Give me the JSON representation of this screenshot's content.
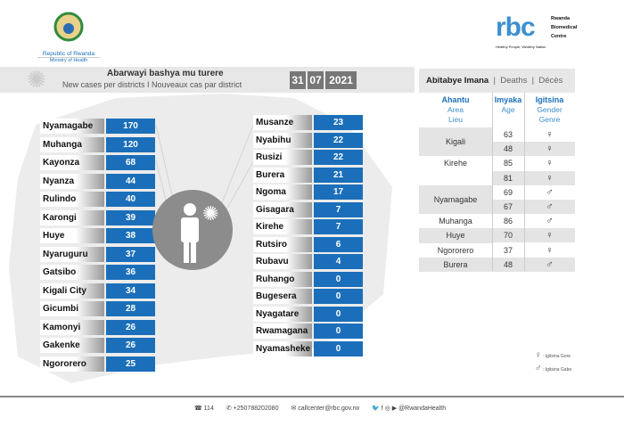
{
  "header": {
    "left_logo_line1": "Republic of Rwanda",
    "left_logo_line2": "Ministry of Health",
    "rbc_logo": "rbc",
    "rbc_name": [
      "Rwanda",
      "Biomedical",
      "Centre"
    ],
    "rbc_tagline": "Healthy People, Wealthy Nation"
  },
  "cases": {
    "title": "Abarwayi bashya mu turere",
    "subtitle": "New cases per districts  I  Nouveaux cas par district",
    "date": {
      "day": "31",
      "month": "07",
      "year": "2021"
    },
    "left": [
      {
        "d": "Nyamagabe",
        "v": "170"
      },
      {
        "d": "Muhanga",
        "v": "120"
      },
      {
        "d": "Kayonza",
        "v": "68"
      },
      {
        "d": "Nyanza",
        "v": "44"
      },
      {
        "d": "Rulindo",
        "v": "40"
      },
      {
        "d": "Karongi",
        "v": "39"
      },
      {
        "d": "Huye",
        "v": "38"
      },
      {
        "d": "Nyaruguru",
        "v": "37"
      },
      {
        "d": "Gatsibo",
        "v": "36"
      },
      {
        "d": "Kigali City",
        "v": "34"
      },
      {
        "d": "Gicumbi",
        "v": "28"
      },
      {
        "d": "Kamonyi",
        "v": "26"
      },
      {
        "d": "Gakenke",
        "v": "26"
      },
      {
        "d": "Ngororero",
        "v": "25"
      }
    ],
    "right": [
      {
        "d": "Musanze",
        "v": "23"
      },
      {
        "d": "Nyabihu",
        "v": "22"
      },
      {
        "d": "Rusizi",
        "v": "22"
      },
      {
        "d": "Burera",
        "v": "21"
      },
      {
        "d": "Ngoma",
        "v": "17"
      },
      {
        "d": "Gisagara",
        "v": "7"
      },
      {
        "d": "Kirehe",
        "v": "7"
      },
      {
        "d": "Rutsiro",
        "v": "6"
      },
      {
        "d": "Rubavu",
        "v": "4"
      },
      {
        "d": "Ruhango",
        "v": "0"
      },
      {
        "d": "Bugesera",
        "v": "0"
      },
      {
        "d": "Nyagatare",
        "v": "0"
      },
      {
        "d": "Rwamagana",
        "v": "0"
      },
      {
        "d": "Nyamasheke",
        "v": "0"
      }
    ]
  },
  "deaths": {
    "title": "Abitabye Imana",
    "title_en": "Deaths",
    "title_fr": "Décès",
    "col_area": [
      "Ahantu",
      "Area",
      "Lieu"
    ],
    "col_age": [
      "Imyaka",
      "Age"
    ],
    "col_gender": [
      "Igitsina",
      "Gender",
      "Genre"
    ],
    "areas": [
      {
        "name": "Kigali",
        "rows": 2
      },
      {
        "name": "Kirehe",
        "rows": 2
      },
      {
        "name": "Nyamagabe",
        "rows": 2
      },
      {
        "name": "Muhanga",
        "rows": 1
      },
      {
        "name": "Huye",
        "rows": 1
      },
      {
        "name": "Ngororero",
        "rows": 1
      },
      {
        "name": "Burera",
        "rows": 1
      }
    ],
    "rows": [
      {
        "age": "63",
        "g": "♀"
      },
      {
        "age": "48",
        "g": "♀"
      },
      {
        "age": "85",
        "g": "♀"
      },
      {
        "age": "81",
        "g": "♀"
      },
      {
        "age": "69",
        "g": "♂"
      },
      {
        "age": "67",
        "g": "♂"
      },
      {
        "age": "86",
        "g": "♂"
      },
      {
        "age": "70",
        "g": "♀"
      },
      {
        "age": "37",
        "g": "♀"
      },
      {
        "age": "48",
        "g": "♂"
      }
    ],
    "legend": [
      {
        "sym": "♀",
        "label": ": Igitsina Gore"
      },
      {
        "sym": "♂",
        "label": ": Igitsina Gabo"
      }
    ]
  },
  "footer": {
    "phone": "114",
    "whatsapp": "+250788202080",
    "email": "callcenter@rbc.gov.rw",
    "social": "@RwandaHealth"
  },
  "colors": {
    "accent": "#1b6fba",
    "band": "#e7e7e7"
  }
}
